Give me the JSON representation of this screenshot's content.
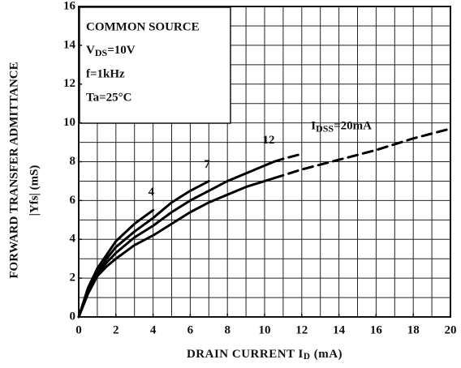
{
  "chart_data": {
    "type": "line",
    "xlabel": {
      "main": "DRAIN  CURRENT  I",
      "sub": "D",
      "rest": " (mA)"
    },
    "ylabel": [
      "FORWARD  TRANSFER  ADMITTANCE",
      "|Yfs|  (mS)"
    ],
    "annotations": [
      "COMMON SOURCE",
      {
        "main": "V",
        "sub": "DS",
        "rest": "=10V"
      },
      "f=1kHz",
      "Ta=25°C"
    ],
    "x": [
      0,
      0.5,
      1,
      1.5,
      2,
      3,
      4,
      5,
      6,
      7,
      8,
      9,
      10,
      10.5,
      11,
      12,
      14,
      16,
      18,
      20
    ],
    "series": [
      {
        "name": "4",
        "color": "#000000",
        "values": [
          0,
          1.5,
          2.5,
          3.2,
          3.9,
          4.8,
          5.5,
          null,
          null,
          null,
          null,
          null,
          null,
          null,
          null,
          null,
          null,
          null,
          null,
          null
        ],
        "dashed_values": [
          null,
          null,
          null,
          null,
          null,
          null,
          null,
          null,
          null,
          null,
          null,
          null,
          null,
          null,
          null,
          null,
          null,
          null,
          null,
          null
        ]
      },
      {
        "name": "7",
        "color": "#000000",
        "values": [
          0,
          1.4,
          2.3,
          3.0,
          3.6,
          4.4,
          5.1,
          5.9,
          6.5,
          7.0,
          null,
          null,
          null,
          null,
          null,
          null,
          null,
          null,
          null,
          null
        ],
        "dashed_values": [
          null,
          null,
          null,
          null,
          null,
          null,
          null,
          null,
          null,
          null,
          null,
          null,
          null,
          null,
          null,
          null,
          null,
          null,
          null,
          null
        ]
      },
      {
        "name": "12",
        "color": "#000000",
        "values": [
          0,
          1.3,
          2.2,
          2.8,
          3.3,
          4.1,
          4.7,
          5.4,
          6.0,
          6.5,
          7.0,
          7.4,
          7.8,
          8.0,
          null,
          null,
          null,
          null,
          null,
          null
        ],
        "dashed_values": [
          null,
          null,
          null,
          null,
          null,
          null,
          null,
          null,
          null,
          null,
          null,
          null,
          null,
          8.0,
          8.15,
          8.4,
          null,
          null,
          null,
          null
        ]
      },
      {
        "name": {
          "main": "I",
          "sub": "DSS",
          "rest": "=20mA"
        },
        "color": "#000000",
        "values": [
          0,
          1.2,
          2.1,
          2.6,
          3.0,
          3.7,
          4.2,
          4.8,
          5.4,
          5.9,
          6.3,
          6.7,
          7.0,
          7.15,
          null,
          null,
          null,
          null,
          null,
          null
        ],
        "dashed_values": [
          null,
          null,
          null,
          null,
          null,
          null,
          null,
          null,
          null,
          null,
          null,
          null,
          null,
          7.15,
          7.3,
          7.6,
          8.1,
          8.6,
          9.2,
          9.7
        ]
      }
    ],
    "xlim": [
      0,
      20
    ],
    "xticks": [
      0,
      2,
      4,
      6,
      8,
      10,
      12,
      14,
      16,
      18,
      20
    ],
    "ylim": [
      0,
      16
    ],
    "yticks": [
      0,
      2,
      4,
      6,
      8,
      10,
      12,
      14,
      16
    ],
    "grid": true,
    "grid_step": 1
  }
}
